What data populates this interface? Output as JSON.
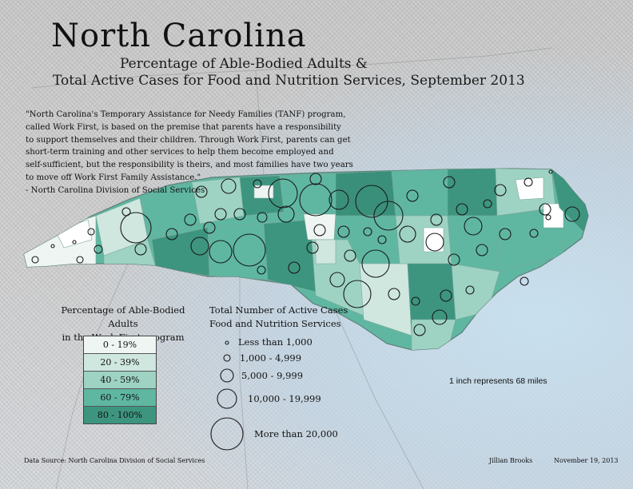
{
  "title": "North Carolina",
  "subtitle_line1": "Percentage of Able-Bodied Adults &",
  "subtitle_line2": "Total Active Cases for Food and Nutrition Services, September 2013",
  "quote": {
    "lines": [
      "\"North Carolina's Temporary Assistance for Needy Families (TANF) program,",
      "called Work First, is based on the premise that parents have a responsibility",
      "to support themselves and their children. Through Work First, parents can get",
      "short-term training and other services to help them become employed and",
      "self-sufficient, but the responsibility is theirs, and most families have two years",
      "to move off Work First Family Assistance.\"",
      "- North Carolina Division of Social Services"
    ]
  },
  "percent_legend": {
    "title_line1": "Percentage of Able-Bodied Adults",
    "title_line2": "in the Work First program",
    "classes": [
      {
        "label": "0 - 19%",
        "color": "#eef5f3"
      },
      {
        "label": "20 - 39%",
        "color": "#cfe7df"
      },
      {
        "label": "40 - 59%",
        "color": "#9ed3c3"
      },
      {
        "label": "60 - 79%",
        "color": "#5fb7a2"
      },
      {
        "label": "80 - 100%",
        "color": "#3d957f"
      }
    ]
  },
  "cases_legend": {
    "title_line1": "Total Number of Active Cases",
    "title_line2": "Food and Nutrition Services",
    "classes": [
      {
        "label": "Less than 1,000"
      },
      {
        "label": "1,000 - 4,999"
      },
      {
        "label": "5,000 - 9,999"
      },
      {
        "label": "10,000 - 19,999"
      },
      {
        "label": "More than 20,000"
      }
    ]
  },
  "scale_text": "1 inch represents 68 miles",
  "source": "Data Source: North Carolina Division of Social Services",
  "author": "Jillian Brooks",
  "date": "November 19, 2013",
  "colors": {
    "state_outline": "#5f7f77",
    "ocean": "#cfe2ef",
    "circle_stroke": "#1a1a1a"
  }
}
